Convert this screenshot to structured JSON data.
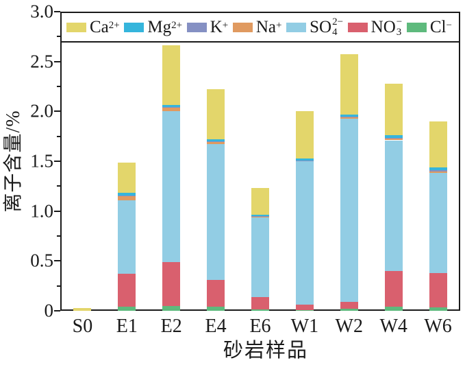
{
  "axis_color": "#1a1a1a",
  "chart_data": {
    "type": "bar",
    "stacked": true,
    "xlabel": "砂岩样品",
    "ylabel": "离子含量/%",
    "categories": [
      "S0",
      "E1",
      "E2",
      "E4",
      "E6",
      "W1",
      "W2",
      "W4",
      "W6"
    ],
    "series": [
      {
        "name": "Cl-",
        "label": {
          "base": "Cl",
          "sup": "−"
        },
        "color": "#5eba7d",
        "values": [
          0,
          0.04,
          0.05,
          0.04,
          0.015,
          0.01,
          0.02,
          0.04,
          0.035
        ]
      },
      {
        "name": "NO3-",
        "label": {
          "base": "NO",
          "sub": "3",
          "sup": "−"
        },
        "color": "#d9606e",
        "values": [
          0,
          0.33,
          0.44,
          0.27,
          0.12,
          0.05,
          0.07,
          0.36,
          0.345
        ]
      },
      {
        "name": "SO42-",
        "label": {
          "base": "SO",
          "sub": "4",
          "sup": "2−"
        },
        "color": "#92cde4",
        "values": [
          0,
          0.74,
          1.51,
          1.36,
          0.8,
          1.44,
          1.84,
          1.31,
          1.0
        ]
      },
      {
        "name": "Na+",
        "label": {
          "base": "Na",
          "sup": "+"
        },
        "color": "#e09a60",
        "values": [
          0,
          0.04,
          0.04,
          0.02,
          0.01,
          0.005,
          0.015,
          0.02,
          0.02
        ]
      },
      {
        "name": "K+",
        "label": {
          "base": "K",
          "sup": "+"
        },
        "color": "#8590c3",
        "values": [
          0,
          0.005,
          0.005,
          0.01,
          0.005,
          0.005,
          0.005,
          0.005,
          0.01
        ]
      },
      {
        "name": "Mg2+",
        "label": {
          "base": "Mg",
          "sup": "2+"
        },
        "color": "#35b5dc",
        "values": [
          0,
          0.03,
          0.02,
          0.02,
          0.01,
          0.015,
          0.015,
          0.03,
          0.03
        ]
      },
      {
        "name": "Ca2+",
        "label": {
          "base": "Ca",
          "sup": "2+"
        },
        "color": "#e3d66b",
        "values": [
          0.03,
          0.3,
          0.6,
          0.5,
          0.27,
          0.48,
          0.61,
          0.51,
          0.46
        ]
      }
    ],
    "stack_order_note": "series listed bottom-to-top",
    "legend_order": [
      "Ca2+",
      "Mg2+",
      "K+",
      "Na+",
      "SO42-",
      "NO3-",
      "Cl-"
    ],
    "ylim": [
      0,
      3.0
    ],
    "yticks": [
      0,
      0.5,
      1.0,
      1.5,
      2.0,
      2.5,
      3.0
    ],
    "ytick_labels": [
      "0",
      "0.5",
      "1.0",
      "1.5",
      "2.0",
      "2.5",
      "3.0"
    ],
    "minor_tick_interval": 0.25,
    "legend_position": "top-inside",
    "grid": false
  }
}
